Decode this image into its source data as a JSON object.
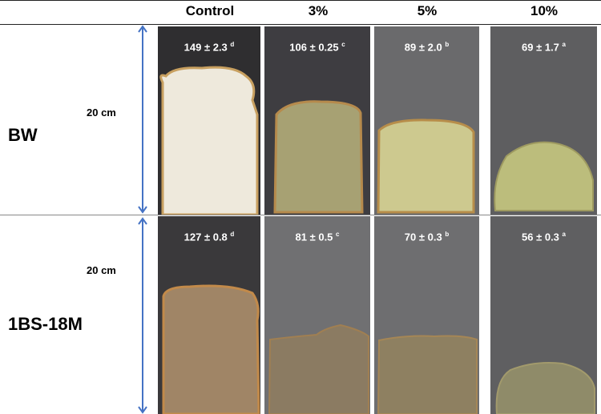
{
  "headers": [
    "Control",
    "3%",
    "5%",
    "10%"
  ],
  "rows": [
    {
      "label": "BW",
      "scale": "20 cm",
      "cells": [
        {
          "value": "149 ± 2.3",
          "letter": "d"
        },
        {
          "value": "106 ± 0.25",
          "letter": "c"
        },
        {
          "value": "89 ± 2.0",
          "letter": "b"
        },
        {
          "value": "69 ± 1.7",
          "letter": "a"
        }
      ]
    },
    {
      "label": "1BS-18M",
      "scale": "20 cm",
      "cells": [
        {
          "value": "127 ± 0.8",
          "letter": "d"
        },
        {
          "value": "81 ± 0.5",
          "letter": "c"
        },
        {
          "value": "70 ± 0.3",
          "letter": "b"
        },
        {
          "value": "56 ± 0.3",
          "letter": "a"
        }
      ]
    }
  ],
  "colors": {
    "arrow": "#4472c4"
  }
}
